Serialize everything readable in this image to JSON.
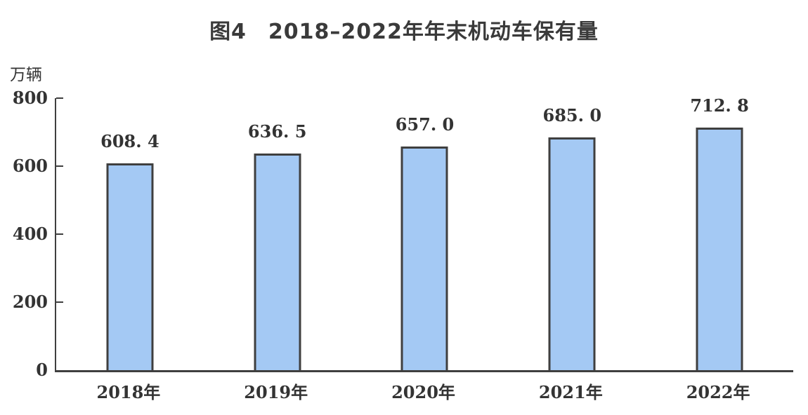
{
  "page": {
    "background": "#ffffff"
  },
  "chart_data": {
    "type": "bar",
    "title": "图4　2018–2022年年末机动车保有量",
    "unit_label": "万辆",
    "xlabel": "",
    "ylabel": "万辆",
    "categories": [
      "2018年",
      "2019年",
      "2020年",
      "2021年",
      "2022年"
    ],
    "values": [
      608.4,
      636.5,
      657.0,
      685.0,
      712.8
    ],
    "value_labels": [
      "608. 4",
      "636. 5",
      "657. 0",
      "685. 0",
      "712. 8"
    ],
    "ylim": [
      0,
      800
    ],
    "yticks": [
      0,
      200,
      400,
      600,
      800
    ],
    "grid": false,
    "legend": false,
    "colors": {
      "bar_fill": "#a4c9f4",
      "bar_border": "#3f3f3f",
      "axis": "#3f3f3f",
      "text": "#333333"
    }
  }
}
